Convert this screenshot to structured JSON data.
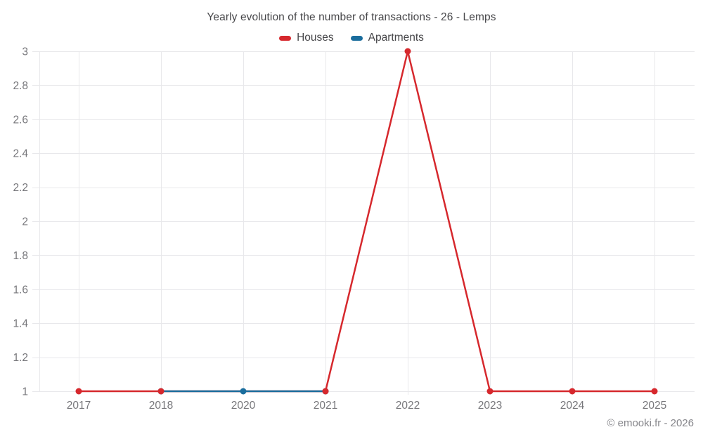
{
  "title": "Yearly evolution of the number of transactions - 26 - Lemps",
  "footer": {
    "credit": "© emooki.fr - 2026"
  },
  "colors": {
    "houses": "#d6282d",
    "apartments": "#1a6d9d",
    "grid": "#e8e8eb",
    "axis_label": "#77777b",
    "title_text": "#47474a",
    "background": "#ffffff"
  },
  "chart_data": {
    "type": "line",
    "title": "Yearly evolution of the number of transactions - 26 - Lemps",
    "categories": [
      "2017",
      "2018",
      "2020",
      "2021",
      "2022",
      "2023",
      "2024",
      "2025"
    ],
    "series": [
      {
        "name": "Houses",
        "color": "#d6282d",
        "values": [
          1,
          1,
          null,
          1,
          3,
          1,
          1,
          1
        ]
      },
      {
        "name": "Apartments",
        "color": "#1a6d9d",
        "values": [
          null,
          1,
          1,
          1,
          null,
          null,
          null,
          null
        ]
      }
    ],
    "ylim": [
      1,
      3
    ],
    "yticks": [
      3,
      2.8,
      2.6,
      2.4,
      2.2,
      2,
      1.8,
      1.6,
      1.4,
      1.2,
      1
    ],
    "grid": true,
    "legend_position": "top",
    "xlabel": "",
    "ylabel": ""
  }
}
